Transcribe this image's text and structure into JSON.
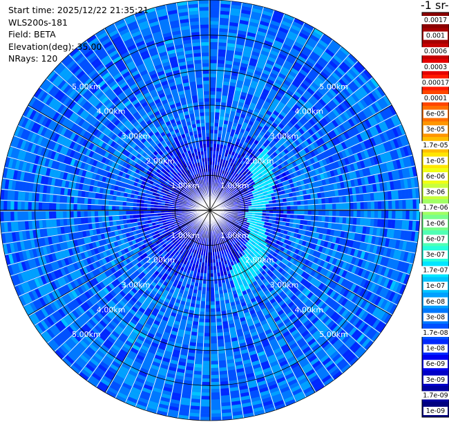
{
  "header": {
    "start_time": "Start time: 2025/12/22 21:35:21",
    "instrument": "WLS200s-181",
    "field": "Field: BETA",
    "elevation": "Elevation(deg): 35.00",
    "nrays": "NRays: 120"
  },
  "colorbar": {
    "title": "-1 sr-",
    "labels": [
      "0.0017",
      "0.001",
      "0.0006",
      "0.0003",
      "0.00017",
      "0.0001",
      "6e-05",
      "3e-05",
      "1.7e-05",
      "1e-05",
      "6e-06",
      "3e-06",
      "1.7e-06",
      "1e-06",
      "6e-07",
      "3e-07",
      "1.7e-07",
      "1e-07",
      "6e-08",
      "3e-08",
      "1.7e-08",
      "1e-08",
      "6e-09",
      "3e-09",
      "1.7e-09",
      "1e-09"
    ],
    "colors": [
      "#8b0000",
      "#a50000",
      "#c40000",
      "#e60000",
      "#ff1a00",
      "#ff4600",
      "#ff6e00",
      "#ff9600",
      "#ffbe00",
      "#ffe600",
      "#f0ff14",
      "#c8ff3c",
      "#a0ff64",
      "#78ff8c",
      "#50ffb4",
      "#28ffdc",
      "#00e6ff",
      "#00c3ff",
      "#00a0ff",
      "#0078ff",
      "#0050ff",
      "#0028ff",
      "#0000f0",
      "#0000c8",
      "#0000a0",
      "#000080"
    ]
  },
  "chart_data": {
    "type": "heatmap",
    "projection": "polar PPI scan",
    "field": "BETA",
    "elevation_deg": 35.0,
    "n_rays": 120,
    "max_range_km": 6.0,
    "range_rings_km": [
      1,
      2,
      3,
      4,
      5,
      6
    ],
    "range_labels": [
      "1.00km",
      "2.00km",
      "3.00km",
      "4.00km",
      "5.00km"
    ],
    "spokes_deg": [
      0,
      30,
      60,
      90,
      120,
      150,
      180,
      210,
      240,
      270,
      300,
      330
    ],
    "color_scale": "log",
    "value_range": [
      1e-09,
      0.0017
    ],
    "background_level": 3e-08,
    "aerosol_arc": {
      "range_km": [
        1.0,
        3.6
      ],
      "azimuth_deg": [
        40,
        160
      ],
      "level": 1e-07
    }
  }
}
